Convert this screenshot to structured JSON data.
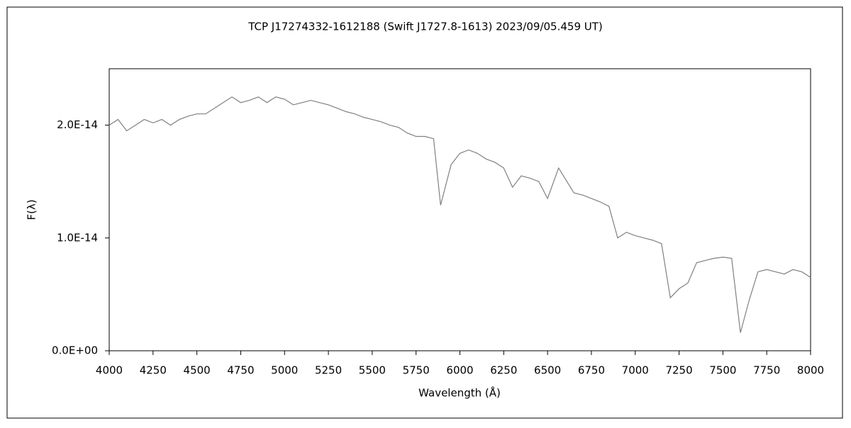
{
  "chart_data": {
    "type": "line",
    "title": "TCP J17274332-1612188 (Swift J1727.8-1613)   2023/09/05.459 UT)",
    "x_label": "Wavelength (Å)",
    "y_label": "F(λ)",
    "color": "#808080",
    "x": [
      4000,
      4050,
      4100,
      4150,
      4200,
      4250,
      4300,
      4350,
      4400,
      4450,
      4500,
      4550,
      4600,
      4650,
      4700,
      4750,
      4800,
      4850,
      4900,
      4950,
      5000,
      5050,
      5100,
      5150,
      5200,
      5250,
      5300,
      5350,
      5400,
      5450,
      5500,
      5550,
      5600,
      5650,
      5700,
      5750,
      5800,
      5850,
      5890,
      5950,
      6000,
      6050,
      6100,
      6150,
      6200,
      6250,
      6300,
      6350,
      6400,
      6450,
      6500,
      6563,
      6650,
      6700,
      6750,
      6800,
      6850,
      6900,
      6950,
      7000,
      7050,
      7100,
      7150,
      7200,
      7250,
      7300,
      7350,
      7400,
      7450,
      7500,
      7550,
      7600,
      7650,
      7700,
      7750,
      7800,
      7850,
      7900,
      7950,
      8000
    ],
    "values": [
      2e-14,
      2.05e-14,
      1.95e-14,
      2e-14,
      2.05e-14,
      2.02e-14,
      2.05e-14,
      2e-14,
      2.05e-14,
      2.08e-14,
      2.1e-14,
      2.1e-14,
      2.15e-14,
      2.2e-14,
      2.25e-14,
      2.2e-14,
      2.22e-14,
      2.25e-14,
      2.2e-14,
      2.25e-14,
      2.23e-14,
      2.18e-14,
      2.2e-14,
      2.22e-14,
      2.2e-14,
      2.18e-14,
      2.15e-14,
      2.12e-14,
      2.1e-14,
      2.07e-14,
      2.05e-14,
      2.03e-14,
      2e-14,
      1.98e-14,
      1.93e-14,
      1.9e-14,
      1.9e-14,
      1.88e-14,
      1.29e-14,
      1.65e-14,
      1.75e-14,
      1.78e-14,
      1.75e-14,
      1.7e-14,
      1.67e-14,
      1.62e-14,
      1.45e-14,
      1.55e-14,
      1.53e-14,
      1.5e-14,
      1.35e-14,
      1.62e-14,
      1.4e-14,
      1.38e-14,
      1.35e-14,
      1.32e-14,
      1.28e-14,
      1e-14,
      1.05e-14,
      1.02e-14,
      1e-14,
      9.8e-15,
      9.5e-15,
      4.7e-15,
      5.5e-15,
      6e-15,
      7.8e-15,
      8e-15,
      8.2e-15,
      8.3e-15,
      8.2e-15,
      1.6e-15,
      4.5e-15,
      7e-15,
      7.2e-15,
      7e-15,
      6.8e-15,
      7.2e-15,
      7e-15,
      6.5e-15
    ],
    "xlim": [
      4000,
      8000
    ],
    "xticks": [
      4000,
      4250,
      4500,
      4750,
      5000,
      5250,
      5500,
      5750,
      6000,
      6250,
      6500,
      6750,
      7000,
      7250,
      7500,
      7750,
      8000
    ],
    "ylim": [
      0,
      2.5e-14
    ],
    "yticks": [
      {
        "value": 0,
        "label": "0.0E+00"
      },
      {
        "value": 1e-14,
        "label": "1.0E-14"
      },
      {
        "value": 2e-14,
        "label": "2.0E-14"
      }
    ]
  }
}
